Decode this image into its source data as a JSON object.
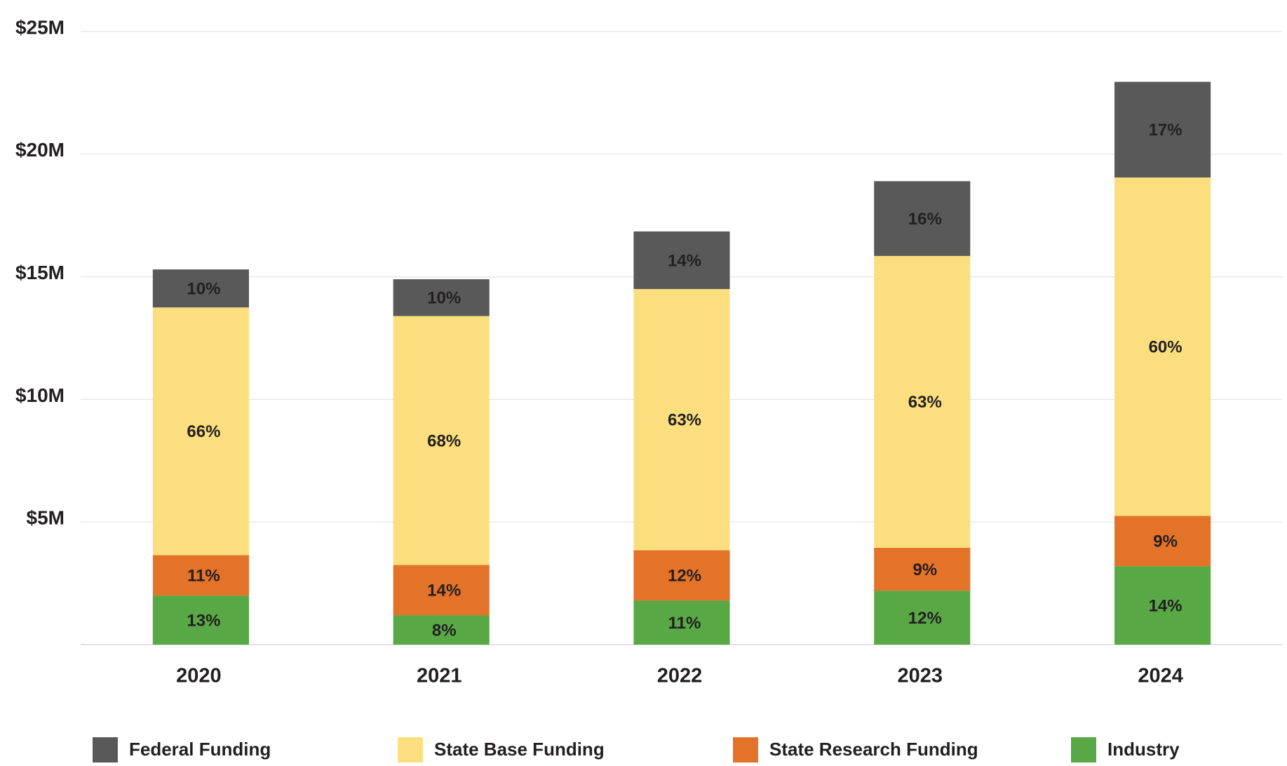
{
  "chart_data": {
    "type": "stacked_bar",
    "categories": [
      "2020",
      "2021",
      "2022",
      "2023",
      "2024"
    ],
    "ylim": [
      0,
      25
    ],
    "yticks": [
      {
        "value": 5,
        "label": "$5M"
      },
      {
        "value": 10,
        "label": "$10M"
      },
      {
        "value": 15,
        "label": "$15M"
      },
      {
        "value": 20,
        "label": "$20M"
      },
      {
        "value": 25,
        "label": "$25M"
      }
    ],
    "grid": true,
    "legend": "bottom",
    "series": [
      {
        "name": "Federal Funding",
        "color": "#595959",
        "values": [
          1.55,
          1.5,
          2.35,
          3.05,
          3.9
        ],
        "shares": [
          10,
          10,
          14,
          16,
          17
        ],
        "share_labels": [
          "10%",
          "10%",
          "14%",
          "16%",
          "17%"
        ]
      },
      {
        "name": "State Base Funding",
        "color": "#fbdf7e",
        "values": [
          10.1,
          10.15,
          10.65,
          11.9,
          13.8
        ],
        "shares": [
          66,
          68,
          63,
          63,
          60
        ],
        "share_labels": [
          "66%",
          "68%",
          "63%",
          "63%",
          "60%"
        ]
      },
      {
        "name": "State Research Funding",
        "color": "#e4732a",
        "values": [
          1.65,
          2.05,
          2.05,
          1.75,
          2.05
        ],
        "shares": [
          11,
          14,
          12,
          9,
          9
        ],
        "share_labels": [
          "11%",
          "14%",
          "12%",
          "9%",
          "9%"
        ]
      },
      {
        "name": "Industry",
        "color": "#58a845",
        "values": [
          2.0,
          1.2,
          1.8,
          2.2,
          3.2
        ],
        "shares": [
          13,
          8,
          11,
          12,
          14
        ],
        "share_labels": [
          "13%",
          "8%",
          "11%",
          "12%",
          "14%"
        ]
      }
    ]
  }
}
